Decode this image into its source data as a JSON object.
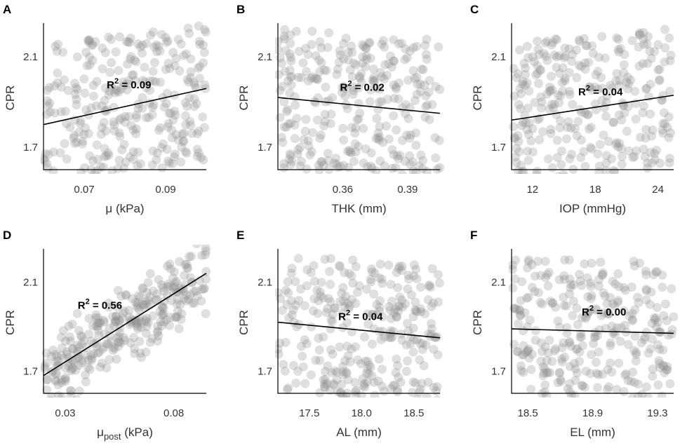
{
  "chart_data": [
    {
      "panel": "A",
      "type": "scatter",
      "xlabel": "μ (kPa)",
      "xlabel_base": "μ",
      "xlabel_sub": "",
      "xlabel_unit": "(kPa)",
      "ylabel": "CPR",
      "xlim": [
        0.06,
        0.1
      ],
      "ylim": [
        1.6,
        2.25
      ],
      "xticks": [
        0.07,
        0.09
      ],
      "xtick_labels": [
        "0.07",
        "0.09"
      ],
      "yticks": [
        1.7,
        2.1
      ],
      "ytick_labels": [
        "1.7",
        "2.1"
      ],
      "fit": {
        "x": [
          0.06,
          0.1
        ],
        "y": [
          1.8,
          1.96
        ]
      },
      "r2_label": "= 0.09",
      "r2_text": "R2 = 0.09",
      "r2_pos": {
        "x": 0.081,
        "y": 1.96
      },
      "n_points": 300,
      "seed": 11,
      "noise": 0.13,
      "point_model": "uniform"
    },
    {
      "panel": "B",
      "type": "scatter",
      "xlabel": "THK (mm)",
      "xlabel_base": "THK",
      "xlabel_sub": "",
      "xlabel_unit": "(mm)",
      "ylabel": "CPR",
      "xlim": [
        0.33,
        0.405
      ],
      "ylim": [
        1.6,
        2.25
      ],
      "xticks": [
        0.36,
        0.39
      ],
      "xtick_labels": [
        "0.36",
        "0.39"
      ],
      "yticks": [
        1.7,
        2.1
      ],
      "ytick_labels": [
        "1.7",
        "2.1"
      ],
      "fit": {
        "x": [
          0.33,
          0.405
        ],
        "y": [
          1.92,
          1.85
        ]
      },
      "r2_label": "= 0.02",
      "r2_text": "R2 = 0.02",
      "r2_pos": {
        "x": 0.369,
        "y": 1.95
      },
      "n_points": 300,
      "seed": 23,
      "noise": 0.13,
      "point_model": "uniform"
    },
    {
      "panel": "C",
      "type": "scatter",
      "xlabel": "IOP (mmHg)",
      "xlabel_base": "IOP",
      "xlabel_sub": "",
      "xlabel_unit": "(mmHg)",
      "ylabel": "CPR",
      "xlim": [
        10,
        25.5
      ],
      "ylim": [
        1.6,
        2.25
      ],
      "xticks": [
        12,
        18,
        24
      ],
      "xtick_labels": [
        "12",
        "18",
        "24"
      ],
      "yticks": [
        1.7,
        2.1
      ],
      "ytick_labels": [
        "1.7",
        "2.1"
      ],
      "fit": {
        "x": [
          10,
          25.5
        ],
        "y": [
          1.82,
          1.93
        ]
      },
      "r2_label": "= 0.04",
      "r2_text": "R2 = 0.04",
      "r2_pos": {
        "x": 18.5,
        "y": 1.93
      },
      "n_points": 300,
      "seed": 37,
      "noise": 0.13,
      "point_model": "uniform"
    },
    {
      "panel": "D",
      "type": "scatter",
      "xlabel": "μpost (kPa)",
      "xlabel_base": "μ",
      "xlabel_sub": "post",
      "xlabel_unit": "(kPa)",
      "ylabel": "CPR",
      "xlim": [
        0.02,
        0.095
      ],
      "ylim": [
        1.6,
        2.25
      ],
      "xticks": [
        0.03,
        0.08
      ],
      "xtick_labels": [
        "0.03",
        "0.08"
      ],
      "yticks": [
        1.7,
        2.1
      ],
      "ytick_labels": [
        "1.7",
        "2.1"
      ],
      "fit": {
        "x": [
          0.02,
          0.095
        ],
        "y": [
          1.68,
          2.14
        ]
      },
      "r2_label": "= 0.56",
      "r2_text": "R2 = 0.56",
      "r2_pos": {
        "x": 0.046,
        "y": 1.98
      },
      "n_points": 300,
      "seed": 53,
      "noise": 0.085,
      "point_model": "fit"
    },
    {
      "panel": "E",
      "type": "scatter",
      "xlabel": "AL (mm)",
      "xlabel_base": "AL",
      "xlabel_sub": "",
      "xlabel_unit": "(mm)",
      "ylabel": "CPR",
      "xlim": [
        17.2,
        18.75
      ],
      "ylim": [
        1.6,
        2.25
      ],
      "xticks": [
        17.5,
        18.0,
        18.5
      ],
      "xtick_labels": [
        "17.5",
        "18.0",
        "18.5"
      ],
      "yticks": [
        1.7,
        2.1
      ],
      "ytick_labels": [
        "1.7",
        "2.1"
      ],
      "fit": {
        "x": [
          17.2,
          18.75
        ],
        "y": [
          1.92,
          1.85
        ]
      },
      "r2_label": "= 0.04",
      "r2_text": "R2 = 0.04",
      "r2_pos": {
        "x": 17.99,
        "y": 1.93
      },
      "n_points": 300,
      "seed": 71,
      "noise": 0.13,
      "point_model": "uniform"
    },
    {
      "panel": "F",
      "type": "scatter",
      "xlabel": "EL (mm)",
      "xlabel_base": "EL",
      "xlabel_sub": "",
      "xlabel_unit": "(mm)",
      "ylabel": "CPR",
      "xlim": [
        18.4,
        19.4
      ],
      "ylim": [
        1.6,
        2.25
      ],
      "xticks": [
        18.5,
        18.9,
        19.3
      ],
      "xtick_labels": [
        "18.5",
        "18.9",
        "19.3"
      ],
      "yticks": [
        1.7,
        2.1
      ],
      "ytick_labels": [
        "1.7",
        "2.1"
      ],
      "fit": {
        "x": [
          18.4,
          19.4
        ],
        "y": [
          1.89,
          1.87
        ]
      },
      "r2_label": "= 0.00",
      "r2_text": "R2 = 0.00",
      "r2_pos": {
        "x": 18.97,
        "y": 1.95
      },
      "n_points": 300,
      "seed": 89,
      "noise": 0.13,
      "point_model": "uniform"
    }
  ],
  "colors": {
    "point": "#8c8c8c",
    "line": "#000000",
    "text": "#333333"
  }
}
